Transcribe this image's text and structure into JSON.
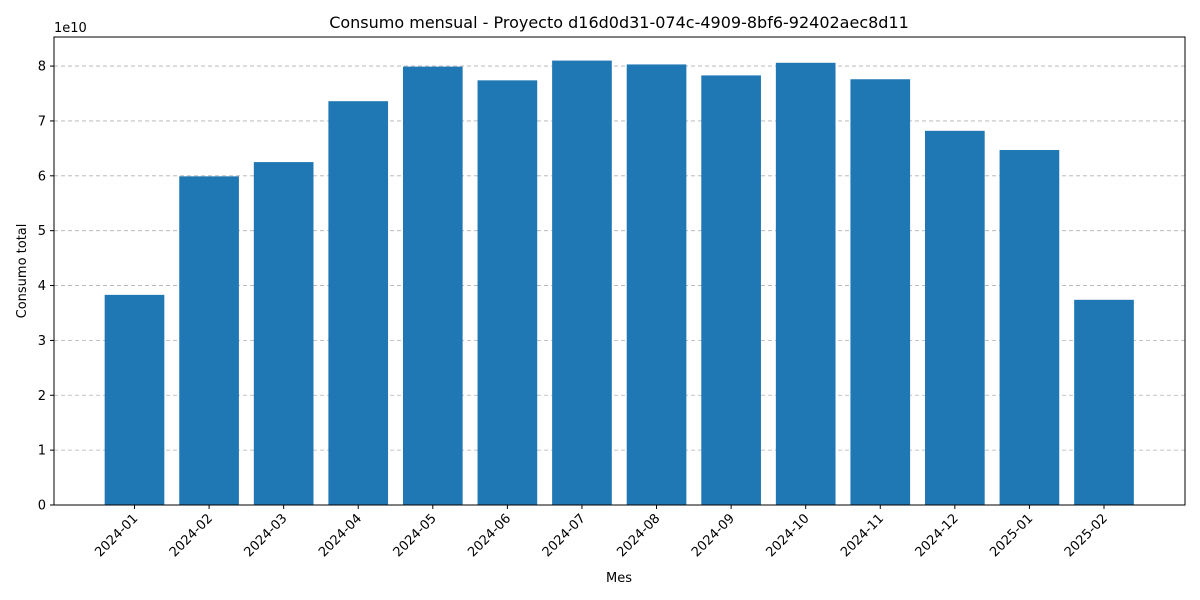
{
  "chart_data": {
    "type": "bar",
    "title": "Consumo mensual - Proyecto d16d0d31-074c-4909-8bf6-92402aec8d11",
    "xlabel": "Mes",
    "ylabel": "Consumo total",
    "y_offset_label": "1e10",
    "y_scale": 10000000000,
    "categories": [
      "2024-01",
      "2024-02",
      "2024-03",
      "2024-04",
      "2024-05",
      "2024-06",
      "2024-07",
      "2024-08",
      "2024-09",
      "2024-10",
      "2024-11",
      "2024-12",
      "2025-01",
      "2025-02"
    ],
    "values": [
      38300000000,
      59900000000,
      62500000000,
      73600000000,
      79900000000,
      77400000000,
      81000000000,
      80300000000,
      78300000000,
      80600000000,
      77600000000,
      68200000000,
      64700000000,
      37400000000
    ],
    "yticks": [
      0,
      1,
      2,
      3,
      4,
      5,
      6,
      7,
      8
    ],
    "ylim": [
      0,
      85300000000
    ],
    "grid": "y-dashed",
    "bar_color": "#1f77b4",
    "legend": "none"
  }
}
